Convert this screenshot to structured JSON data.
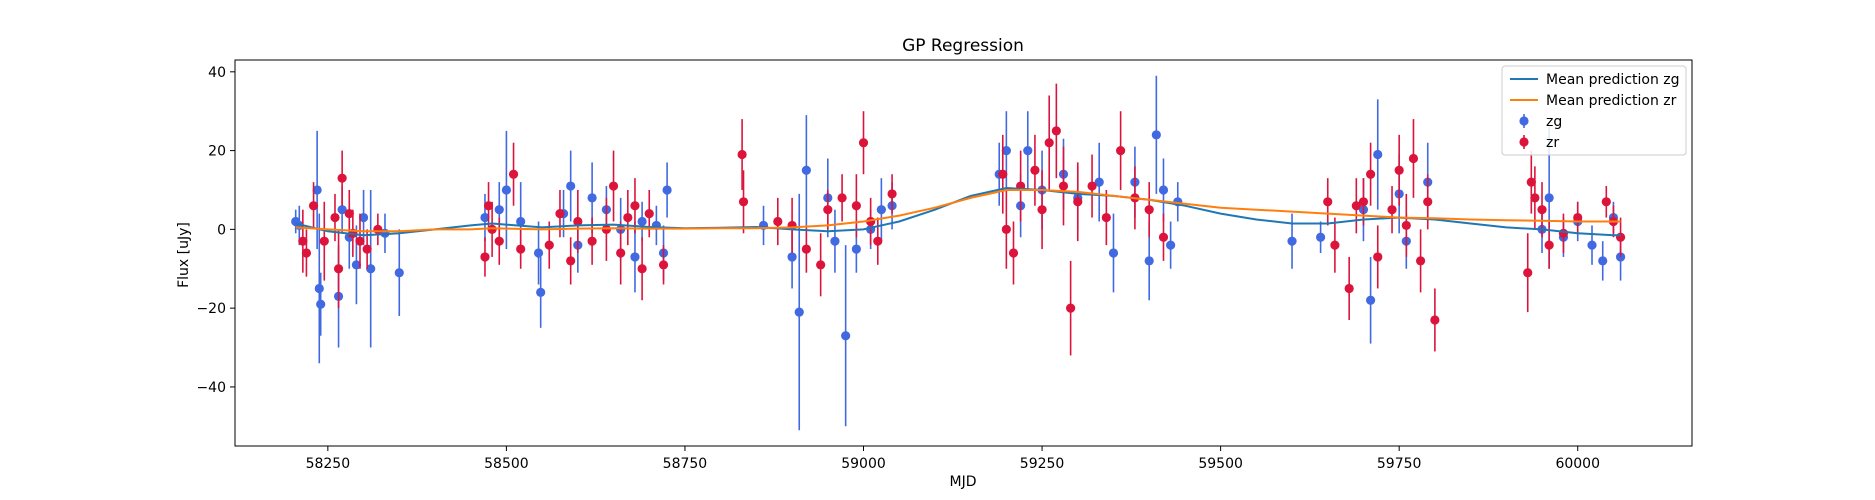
{
  "chart_data": {
    "type": "scatter",
    "title": "GP Regression",
    "xlabel": "MJD",
    "ylabel": "Flux [uJy]",
    "xlim": [
      58120,
      60160
    ],
    "ylim": [
      -55,
      43
    ],
    "xticks": [
      58250,
      58500,
      58750,
      59000,
      59250,
      59500,
      59750,
      60000
    ],
    "yticks": [
      -40,
      -20,
      0,
      20,
      40
    ],
    "legend_position": "top-right",
    "legend": [
      "Mean prediction zg",
      "Mean prediction zr",
      "zg",
      "zr"
    ],
    "lines": [
      {
        "name": "Mean prediction zg",
        "color": "#1f77b4",
        "x": [
          58205,
          58250,
          58300,
          58350,
          58400,
          58450,
          58480,
          58550,
          58600,
          58650,
          58700,
          58750,
          58800,
          58850,
          58900,
          58950,
          59000,
          59050,
          59100,
          59150,
          59200,
          59250,
          59300,
          59350,
          59400,
          59450,
          59500,
          59550,
          59600,
          59650,
          59700,
          59750,
          59800,
          59850,
          59900,
          59950,
          60000,
          60050,
          60060
        ],
        "y": [
          1.5,
          -0.5,
          -1.5,
          -1.0,
          0.0,
          1.0,
          1.5,
          0.5,
          1.0,
          1.2,
          0.6,
          0.3,
          0.4,
          0.6,
          0.0,
          -0.5,
          0.0,
          2.0,
          5.0,
          8.5,
          10.5,
          10.0,
          9.0,
          8.5,
          7.5,
          6.0,
          4.0,
          2.5,
          1.5,
          1.5,
          2.5,
          3.0,
          2.5,
          1.5,
          0.5,
          0.0,
          -1.0,
          -1.5,
          -1.5
        ]
      },
      {
        "name": "Mean prediction zr",
        "color": "#ff7f0e",
        "x": [
          58205,
          58250,
          58300,
          58350,
          58400,
          58450,
          58480,
          58550,
          58600,
          58650,
          58700,
          58750,
          58800,
          58850,
          58900,
          58950,
          59000,
          59050,
          59100,
          59150,
          59200,
          59250,
          59300,
          59350,
          59400,
          59450,
          59500,
          59550,
          59600,
          59650,
          59700,
          59750,
          59800,
          59850,
          59900,
          59950,
          60000,
          60050,
          60060
        ],
        "y": [
          0.5,
          0.0,
          -0.5,
          -0.5,
          0.0,
          0.0,
          0.3,
          0.0,
          0.2,
          0.3,
          0.2,
          0.2,
          0.3,
          0.3,
          0.5,
          1.0,
          2.0,
          3.5,
          5.5,
          8.0,
          10.0,
          10.0,
          9.5,
          8.5,
          7.5,
          6.5,
          5.5,
          5.0,
          4.5,
          4.0,
          3.5,
          3.0,
          2.8,
          2.5,
          2.3,
          2.2,
          2.0,
          2.0,
          2.0
        ]
      }
    ],
    "series": [
      {
        "name": "zg",
        "color": "#4169e1",
        "points": [
          [
            58205,
            2,
            3
          ],
          [
            58210,
            1,
            5
          ],
          [
            58235,
            10,
            15
          ],
          [
            58238,
            -15,
            19
          ],
          [
            58240,
            -19,
            8
          ],
          [
            58265,
            -17,
            13
          ],
          [
            58270,
            5,
            6
          ],
          [
            58280,
            -2,
            8
          ],
          [
            58290,
            -9,
            10
          ],
          [
            58300,
            3,
            7
          ],
          [
            58310,
            -10,
            20
          ],
          [
            58330,
            -1,
            5
          ],
          [
            58350,
            -11,
            11
          ],
          [
            58470,
            3,
            6
          ],
          [
            58490,
            5,
            7
          ],
          [
            58500,
            10,
            15
          ],
          [
            58520,
            2,
            10
          ],
          [
            58545,
            -6,
            8
          ],
          [
            58548,
            -16,
            9
          ],
          [
            58580,
            4,
            6
          ],
          [
            58590,
            11,
            9
          ],
          [
            58600,
            -4,
            7
          ],
          [
            58620,
            8,
            9
          ],
          [
            58640,
            5,
            6
          ],
          [
            58660,
            0,
            8
          ],
          [
            58680,
            -7,
            9
          ],
          [
            58690,
            2,
            5
          ],
          [
            58710,
            1,
            5
          ],
          [
            58720,
            -6,
            7
          ],
          [
            58725,
            10,
            7
          ],
          [
            58860,
            1,
            5
          ],
          [
            58900,
            -7,
            8
          ],
          [
            58910,
            -21,
            30
          ],
          [
            58920,
            15,
            14
          ],
          [
            58950,
            8,
            10
          ],
          [
            58960,
            -3,
            8
          ],
          [
            58975,
            -27,
            23
          ],
          [
            58990,
            -5,
            6
          ],
          [
            59010,
            0,
            5
          ],
          [
            59025,
            5,
            8
          ],
          [
            59040,
            6,
            6
          ],
          [
            59190,
            14,
            8
          ],
          [
            59200,
            20,
            10
          ],
          [
            59220,
            6,
            8
          ],
          [
            59230,
            20,
            10
          ],
          [
            59250,
            10,
            10
          ],
          [
            59280,
            14,
            9
          ],
          [
            59300,
            8,
            8
          ],
          [
            59330,
            12,
            10
          ],
          [
            59350,
            -6,
            10
          ],
          [
            59380,
            12,
            9
          ],
          [
            59400,
            -8,
            10
          ],
          [
            59410,
            24,
            15
          ],
          [
            59420,
            10,
            8
          ],
          [
            59430,
            -4,
            6
          ],
          [
            59440,
            7,
            5
          ],
          [
            59600,
            -3,
            7
          ],
          [
            59640,
            -2,
            4
          ],
          [
            59700,
            5,
            8
          ],
          [
            59710,
            -18,
            11
          ],
          [
            59720,
            19,
            14
          ],
          [
            59750,
            9,
            10
          ],
          [
            59760,
            -3,
            7
          ],
          [
            59790,
            12,
            10
          ],
          [
            59950,
            0,
            6
          ],
          [
            59960,
            8,
            18
          ],
          [
            59980,
            -2,
            5
          ],
          [
            60000,
            2,
            5
          ],
          [
            60020,
            -4,
            5
          ],
          [
            60035,
            -8,
            5
          ],
          [
            60050,
            3,
            4
          ],
          [
            60060,
            -7,
            6
          ]
        ]
      },
      {
        "name": "zr",
        "color": "#dc143c",
        "points": [
          [
            58215,
            -3,
            8
          ],
          [
            58220,
            -6,
            6
          ],
          [
            58230,
            6,
            6
          ],
          [
            58245,
            -3,
            10
          ],
          [
            58260,
            3,
            6
          ],
          [
            58265,
            -10,
            10
          ],
          [
            58270,
            13,
            7
          ],
          [
            58280,
            4,
            6
          ],
          [
            58285,
            -1,
            6
          ],
          [
            58295,
            -3,
            7
          ],
          [
            58305,
            -5,
            5
          ],
          [
            58320,
            0,
            4
          ],
          [
            58470,
            -7,
            5
          ],
          [
            58475,
            6,
            6
          ],
          [
            58480,
            0,
            7
          ],
          [
            58490,
            -3,
            6
          ],
          [
            58510,
            14,
            8
          ],
          [
            58520,
            -5,
            5
          ],
          [
            58560,
            -4,
            6
          ],
          [
            58575,
            4,
            6
          ],
          [
            58590,
            -8,
            6
          ],
          [
            58600,
            2,
            8
          ],
          [
            58620,
            -3,
            6
          ],
          [
            58640,
            0,
            8
          ],
          [
            58650,
            11,
            9
          ],
          [
            58660,
            -6,
            8
          ],
          [
            58670,
            3,
            7
          ],
          [
            58680,
            6,
            7
          ],
          [
            58690,
            -10,
            8
          ],
          [
            58700,
            4,
            6
          ],
          [
            58720,
            -9,
            5
          ],
          [
            58830,
            19,
            9
          ],
          [
            58832,
            7,
            8
          ],
          [
            58880,
            2,
            6
          ],
          [
            58900,
            1,
            7
          ],
          [
            58920,
            -5,
            6
          ],
          [
            58940,
            -9,
            8
          ],
          [
            58950,
            5,
            5
          ],
          [
            58970,
            8,
            6
          ],
          [
            58990,
            6,
            8
          ],
          [
            59000,
            22,
            8
          ],
          [
            59010,
            2,
            6
          ],
          [
            59020,
            -3,
            6
          ],
          [
            59040,
            9,
            5
          ],
          [
            59195,
            14,
            10
          ],
          [
            59200,
            0,
            10
          ],
          [
            59210,
            -6,
            8
          ],
          [
            59220,
            11,
            9
          ],
          [
            59240,
            15,
            9
          ],
          [
            59250,
            5,
            10
          ],
          [
            59260,
            22,
            12
          ],
          [
            59270,
            25,
            12
          ],
          [
            59280,
            11,
            10
          ],
          [
            59290,
            -20,
            12
          ],
          [
            59300,
            7,
            10
          ],
          [
            59320,
            11,
            8
          ],
          [
            59340,
            3,
            7
          ],
          [
            59360,
            20,
            10
          ],
          [
            59380,
            8,
            8
          ],
          [
            59400,
            5,
            7
          ],
          [
            59420,
            -2,
            6
          ],
          [
            59650,
            7,
            6
          ],
          [
            59660,
            -4,
            7
          ],
          [
            59680,
            -15,
            8
          ],
          [
            59690,
            6,
            7
          ],
          [
            59700,
            7,
            6
          ],
          [
            59710,
            14,
            8
          ],
          [
            59720,
            -7,
            8
          ],
          [
            59740,
            5,
            6
          ],
          [
            59750,
            15,
            9
          ],
          [
            59760,
            1,
            8
          ],
          [
            59770,
            18,
            10
          ],
          [
            59780,
            -8,
            8
          ],
          [
            59790,
            7,
            7
          ],
          [
            59800,
            -23,
            8
          ],
          [
            59930,
            -11,
            10
          ],
          [
            59935,
            12,
            8
          ],
          [
            59940,
            8,
            8
          ],
          [
            59950,
            5,
            7
          ],
          [
            59960,
            -4,
            6
          ],
          [
            59980,
            -1,
            5
          ],
          [
            60000,
            3,
            4
          ],
          [
            60040,
            7,
            4
          ],
          [
            60050,
            2,
            4
          ],
          [
            60060,
            -2,
            5
          ]
        ]
      }
    ]
  }
}
